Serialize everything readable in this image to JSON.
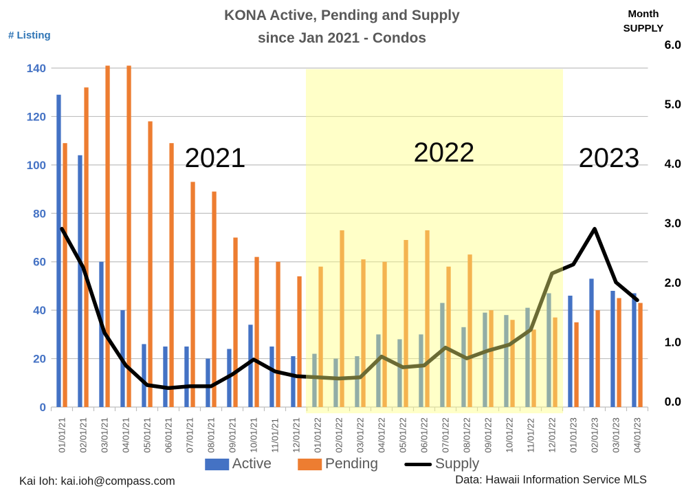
{
  "title": {
    "line1": "KONA Active, Pending and Supply",
    "line2": "since Jan 2021 - Condos"
  },
  "axes": {
    "left_label": "# Listing",
    "right_label_line1": "Month",
    "right_label_line2": "SUPPLY",
    "left_ticks": [
      "0",
      "20",
      "40",
      "60",
      "80",
      "100",
      "120",
      "140"
    ],
    "right_ticks": [
      "0.0",
      "1.0",
      "2.0",
      "3.0",
      "4.0",
      "5.0",
      "6.0"
    ]
  },
  "annotations": {
    "years": [
      "2021",
      "2022",
      "2023"
    ]
  },
  "highlight_band": {
    "from": "01/01/22",
    "to": "12/01/22",
    "color": "#FFFF7D",
    "opacity": 0.42
  },
  "legend": {
    "items": [
      "Active",
      "Pending",
      "Supply"
    ]
  },
  "footer": {
    "left": "Kai Ioh:  kai.ioh@compass.com",
    "right": "Data: Hawaii Information Service MLS"
  },
  "colors": {
    "active": "#4472C4",
    "pending": "#ED7D31",
    "supply": "#000000",
    "grid": "#BFBFBF",
    "title_text": "#595959",
    "left_axis_text": "#2E74B5",
    "x_tick_text": "#595959"
  },
  "chart_data": {
    "type": "bar",
    "subtype": "combo-bar-line",
    "title": "KONA Active, Pending and Supply since Jan 2021 - Condos",
    "categories": [
      "01/01/21",
      "02/01/21",
      "03/01/21",
      "04/01/21",
      "05/01/21",
      "06/01/21",
      "07/01/21",
      "08/01/21",
      "09/01/21",
      "10/01/21",
      "11/01/21",
      "12/01/21",
      "01/01/22",
      "02/01/22",
      "03/01/22",
      "04/01/22",
      "05/01/22",
      "06/01/22",
      "07/01/22",
      "08/01/22",
      "09/01/22",
      "10/01/22",
      "11/01/22",
      "12/01/22",
      "01/01/23",
      "02/01/23",
      "03/01/23",
      "04/01/23"
    ],
    "series": [
      {
        "name": "Active",
        "type": "bar",
        "axis": "left",
        "color": "#4472C4",
        "values": [
          129,
          104,
          60,
          40,
          26,
          25,
          25,
          20,
          24,
          34,
          25,
          21,
          22,
          20,
          21,
          30,
          28,
          30,
          43,
          33,
          39,
          38,
          41,
          47,
          46,
          53,
          48,
          47
        ]
      },
      {
        "name": "Pending",
        "type": "bar",
        "axis": "left",
        "color": "#ED7D31",
        "values": [
          109,
          132,
          141,
          141,
          118,
          109,
          93,
          89,
          70,
          62,
          60,
          54,
          58,
          73,
          61,
          60,
          69,
          73,
          58,
          63,
          40,
          36,
          32,
          37,
          35,
          40,
          45,
          43
        ]
      },
      {
        "name": "Supply",
        "type": "line",
        "axis": "right",
        "color": "#000000",
        "values": [
          3.0,
          2.35,
          1.25,
          0.7,
          0.37,
          0.32,
          0.35,
          0.35,
          0.55,
          0.8,
          0.6,
          0.52,
          0.5,
          0.48,
          0.5,
          0.85,
          0.67,
          0.7,
          1.0,
          0.82,
          0.95,
          1.05,
          1.3,
          2.25,
          2.4,
          3.0,
          2.1,
          1.8
        ]
      }
    ],
    "left_axis": {
      "label": "# Listing",
      "range": [
        0,
        140
      ],
      "tick_step": 20
    },
    "right_axis": {
      "label": "Month SUPPLY",
      "range": [
        0,
        6
      ],
      "tick_step": 1
    },
    "highlight_region": {
      "from": "01/01/22",
      "to": "12/01/22"
    },
    "grid": true,
    "legend_position": "bottom"
  }
}
